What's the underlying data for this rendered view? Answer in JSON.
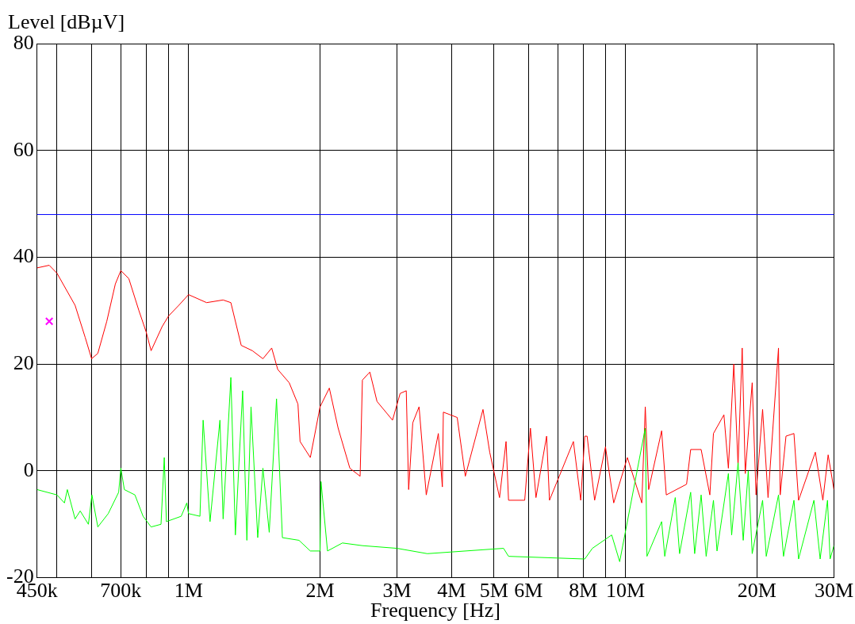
{
  "chart_data": {
    "type": "line",
    "xlabel": "Frequency [Hz]",
    "ylabel": "Level [dBµV]",
    "log": "x",
    "grid": true,
    "legend": false,
    "marker": "none",
    "line_style": "solid",
    "xlim": [
      450000,
      30000000
    ],
    "ylim": [
      -20,
      80
    ],
    "xticks": [
      {
        "value": 450000,
        "label": "450k"
      },
      {
        "value": 500000,
        "label": null
      },
      {
        "value": 600000,
        "label": null
      },
      {
        "value": 700000,
        "label": "700k"
      },
      {
        "value": 800000,
        "label": null
      },
      {
        "value": 900000,
        "label": null
      },
      {
        "value": 1000000,
        "label": "1M"
      },
      {
        "value": 2000000,
        "label": "2M"
      },
      {
        "value": 3000000,
        "label": "3M"
      },
      {
        "value": 4000000,
        "label": "4M"
      },
      {
        "value": 5000000,
        "label": "5M"
      },
      {
        "value": 6000000,
        "label": "6M"
      },
      {
        "value": 7000000,
        "label": null
      },
      {
        "value": 8000000,
        "label": "8M"
      },
      {
        "value": 9000000,
        "label": null
      },
      {
        "value": 10000000,
        "label": "10M"
      },
      {
        "value": 20000000,
        "label": "20M"
      },
      {
        "value": 30000000,
        "label": "30M"
      }
    ],
    "yticks": [
      -20,
      0,
      20,
      40,
      60,
      80
    ],
    "ref_lines": [
      {
        "axis": "y",
        "value": 48,
        "color": "#0000ff",
        "line_style": "solid"
      }
    ],
    "series": [
      {
        "color": "#00ff00",
        "x": [
          450000,
          500000,
          520000,
          528000,
          550000,
          565000,
          590000,
          601000,
          620000,
          655000,
          692000,
          700000,
          713000,
          754000,
          787000,
          821000,
          865000,
          880000,
          890000,
          962000,
          991000,
          1000000,
          1062000,
          1080000,
          1120000,
          1180000,
          1200000,
          1250000,
          1280000,
          1330000,
          1360000,
          1390000,
          1440000,
          1480000,
          1530000,
          1590000,
          1640000,
          1790000,
          1900000,
          2000000,
          2010000,
          2080000,
          2250000,
          2500000,
          3000000,
          3520000,
          5260000,
          5400000,
          8070000,
          8400000,
          9300000,
          9700000,
          11100000,
          11200000,
          12100000,
          12300000,
          13000000,
          13300000,
          14100000,
          14400000,
          14900000,
          15300000,
          15900000,
          16200000,
          17200000,
          17500000,
          18100000,
          18600000,
          19100000,
          19500000,
          20600000,
          21000000,
          22400000,
          23000000,
          24300000,
          24900000,
          27000000,
          27900000,
          29000000,
          29400000,
          30000000
        ],
        "values": [
          -3.5,
          -4.5,
          -6,
          -3.5,
          -9,
          -7.5,
          -10,
          -4.5,
          -10.5,
          -8,
          -4,
          0.5,
          -3.5,
          -4.5,
          -8.5,
          -10.5,
          -10,
          2.5,
          -9.5,
          -8.5,
          -6,
          -8,
          -8.5,
          9.5,
          -9.5,
          9.5,
          -9,
          17.5,
          -12,
          15,
          -13,
          12,
          -12.5,
          0.5,
          -11.5,
          13.5,
          -12.5,
          -13,
          -15,
          -15,
          -2,
          -15,
          -13.5,
          -14,
          -14.5,
          -15.5,
          -14.5,
          -16,
          -16.5,
          -14.5,
          -12,
          -17,
          8,
          -16,
          -9.5,
          -16,
          -5,
          -15.5,
          -4,
          -15.5,
          -4.5,
          -16,
          -5.5,
          -15,
          -0.5,
          -12,
          1.5,
          -13,
          0,
          -15.5,
          -5.5,
          -16,
          -4.5,
          -16,
          -5.5,
          -16.5,
          -5.5,
          -16.5,
          -5.5,
          -16.5,
          -14
        ]
      },
      {
        "color": "#ff0000",
        "x": [
          450000,
          480000,
          500000,
          550000,
          580000,
          600000,
          620000,
          650000,
          680000,
          700000,
          730000,
          770000,
          800000,
          821000,
          870000,
          900000,
          950000,
          1000000,
          1100000,
          1200000,
          1250000,
          1320000,
          1400000,
          1480000,
          1550000,
          1600000,
          1700000,
          1780000,
          1800000,
          1900000,
          2000000,
          2100000,
          2200000,
          2340000,
          2470000,
          2500000,
          2600000,
          2700000,
          2930000,
          3050000,
          3150000,
          3190000,
          3260000,
          3370000,
          3500000,
          3730000,
          3810000,
          3830000,
          4120000,
          4300000,
          4720000,
          4890000,
          5150000,
          5330000,
          5400000,
          5880000,
          6060000,
          6240000,
          6600000,
          6700000,
          7600000,
          7900000,
          8070000,
          8170000,
          8500000,
          9000000,
          9400000,
          10100000,
          10900000,
          11100000,
          11300000,
          12100000,
          12400000,
          13800000,
          14100000,
          14900000,
          15600000,
          15900000,
          16800000,
          17200000,
          17700000,
          18100000,
          18500000,
          18800000,
          19500000,
          19900000,
          20600000,
          21200000,
          22400000,
          22600000,
          23300000,
          24300000,
          24900000,
          27200000,
          28300000,
          29100000,
          30000000
        ],
        "values": [
          38,
          38.5,
          37,
          31,
          25,
          21,
          22,
          28,
          35,
          37.5,
          36,
          30,
          26,
          22.5,
          27,
          29,
          31,
          33,
          31.5,
          32,
          31.5,
          23.5,
          22.5,
          21,
          23,
          19,
          16.5,
          12.5,
          5.5,
          2.5,
          12,
          15.5,
          8,
          0.5,
          -1,
          17,
          18.5,
          13,
          9.5,
          14.5,
          15,
          -3.5,
          9,
          12,
          -4.5,
          7,
          -3,
          11,
          10,
          -1,
          11.5,
          3.5,
          -5,
          5.5,
          -5.5,
          -5.5,
          8,
          -5,
          6.5,
          -5.5,
          5.5,
          -5.5,
          6.5,
          6.5,
          -5.5,
          4.5,
          -6,
          2.5,
          -6,
          12,
          -3.5,
          7.5,
          -4.5,
          -2.5,
          4,
          4,
          -4.5,
          7,
          10.5,
          0.5,
          20,
          1,
          23,
          -0.5,
          16.5,
          -4.5,
          11.5,
          -5,
          23,
          -4.5,
          6.5,
          7,
          -5.5,
          3.5,
          -5.5,
          3,
          -3.5
        ]
      },
      {
        "type": "scatter",
        "color": "#ff00ff",
        "marker": "cross",
        "x": [
          480000
        ],
        "values": [
          28
        ]
      }
    ]
  }
}
